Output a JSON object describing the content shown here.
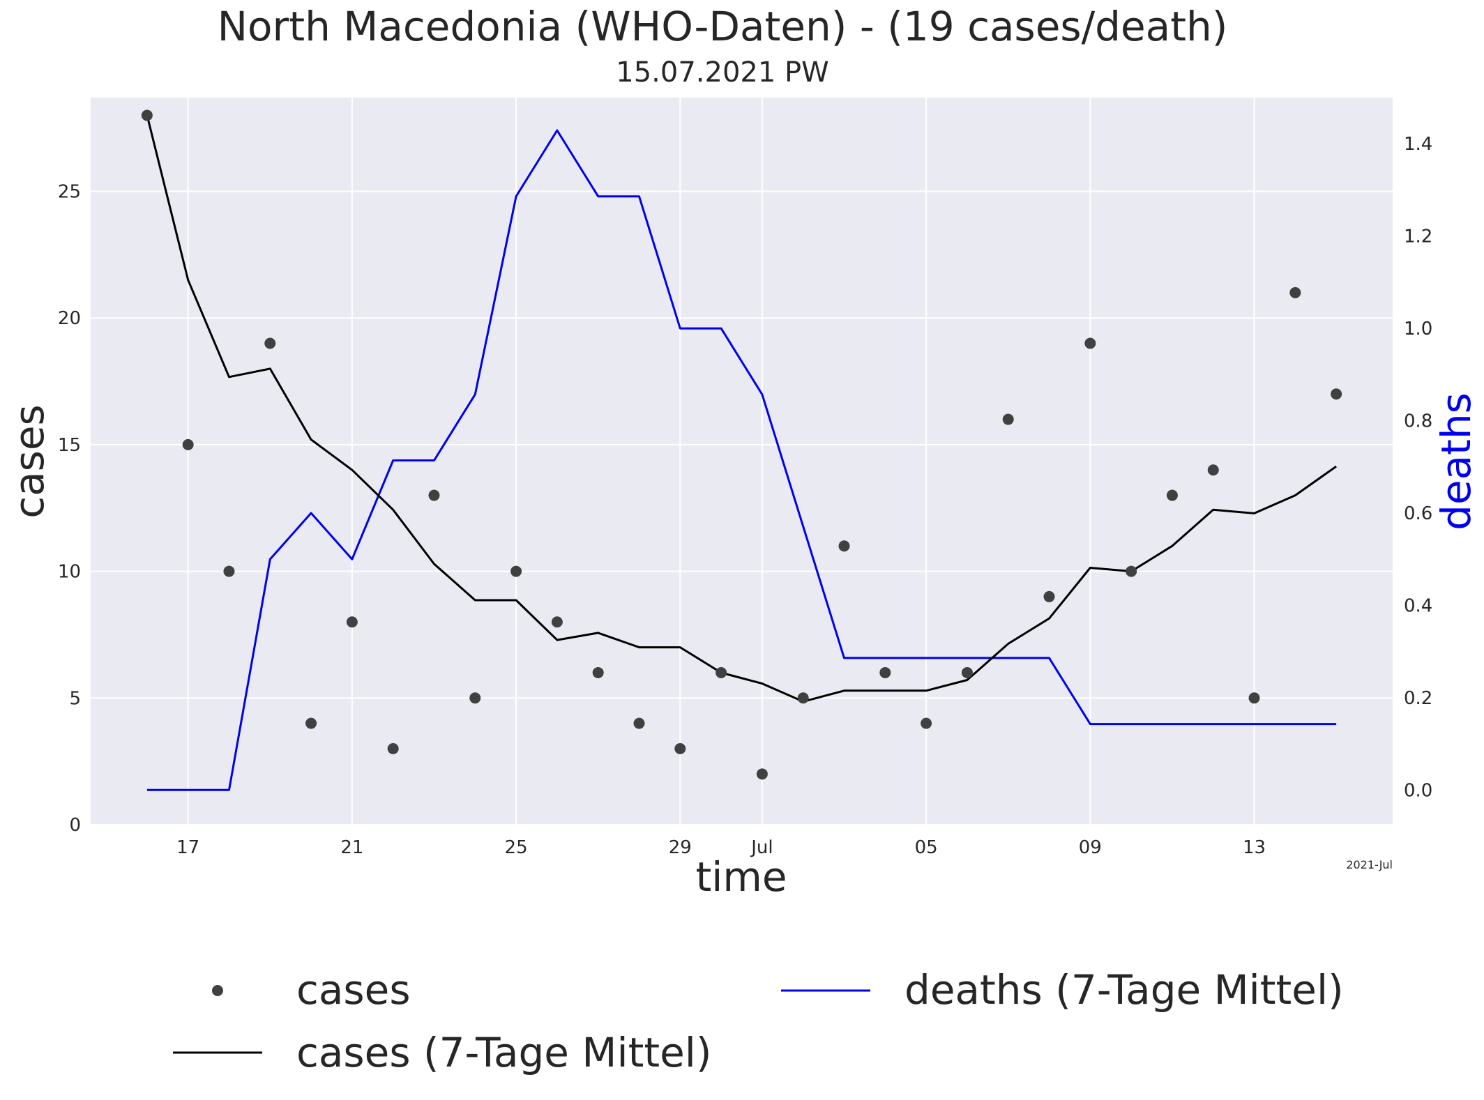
{
  "chart_data": {
    "type": "line",
    "title": "North Macedonia (WHO-Daten) - (19 cases/death)",
    "subtitle": "15.07.2021 PW",
    "xlabel": "time",
    "ylabel_left": "cases",
    "ylabel_right": "deaths",
    "x_offset_label": "2021-Jul",
    "x_dates": [
      "2021-06-16",
      "2021-06-17",
      "2021-06-18",
      "2021-06-19",
      "2021-06-20",
      "2021-06-21",
      "2021-06-22",
      "2021-06-23",
      "2021-06-24",
      "2021-06-25",
      "2021-06-26",
      "2021-06-27",
      "2021-06-28",
      "2021-06-29",
      "2021-06-30",
      "2021-07-01",
      "2021-07-02",
      "2021-07-03",
      "2021-07-04",
      "2021-07-05",
      "2021-07-06",
      "2021-07-07",
      "2021-07-08",
      "2021-07-09",
      "2021-07-10",
      "2021-07-11",
      "2021-07-12",
      "2021-07-13",
      "2021-07-14",
      "2021-07-15"
    ],
    "x_range": [
      "2021-06-14 15:00",
      "2021-07-16 09:00"
    ],
    "x_ticks": [
      {
        "date": "2021-06-17",
        "label": "17"
      },
      {
        "date": "2021-06-21",
        "label": "21"
      },
      {
        "date": "2021-06-25",
        "label": "25"
      },
      {
        "date": "2021-06-29",
        "label": "29"
      },
      {
        "date": "2021-07-01",
        "label": "Jul"
      },
      {
        "date": "2021-07-05",
        "label": "05"
      },
      {
        "date": "2021-07-09",
        "label": "09"
      },
      {
        "date": "2021-07-13",
        "label": "13"
      }
    ],
    "ylim_left": [
      0,
      28.7
    ],
    "yticks_left": [
      "0",
      "5",
      "10",
      "15",
      "20",
      "25"
    ],
    "ylim_right": [
      -0.075,
      1.5
    ],
    "yticks_right": [
      "0.0",
      "0.2",
      "0.4",
      "0.6",
      "0.8",
      "1.0",
      "1.2",
      "1.4"
    ],
    "grid": true,
    "legend_placement": "below",
    "series": [
      {
        "name": "cases",
        "kind": "scatter",
        "axis": "left",
        "color": "#404040",
        "values": [
          28,
          15,
          10,
          19,
          4,
          8,
          3,
          13,
          5,
          10,
          8,
          6,
          4,
          3,
          6,
          2,
          5,
          11,
          6,
          4,
          6,
          16,
          9,
          19,
          10,
          13,
          14,
          5,
          21,
          17
        ]
      },
      {
        "name": "cases (7-Tage Mittel)",
        "kind": "line",
        "axis": "left",
        "color": "#000000",
        "values": [
          28,
          21.5,
          17.67,
          18,
          15.2,
          14,
          12.43,
          10.29,
          8.86,
          8.86,
          7.29,
          7.57,
          7,
          7,
          6,
          5.57,
          4.86,
          5.29,
          5.29,
          5.29,
          5.71,
          7.14,
          8.14,
          10.14,
          10,
          11,
          12.43,
          12.29,
          13,
          14.14
        ]
      },
      {
        "name": "deaths (7-Tage Mittel)",
        "kind": "line",
        "axis": "right",
        "color": "#0000ee",
        "values": [
          0,
          0,
          0,
          0.5,
          0.6,
          0.5,
          0.714,
          0.714,
          0.857,
          1.286,
          1.429,
          1.286,
          1.286,
          1,
          1,
          0.857,
          0.571,
          0.286,
          0.286,
          0.286,
          0.286,
          0.286,
          0.286,
          0.143,
          0.143,
          0.143,
          0.143,
          0.143,
          0.143,
          0.143
        ]
      }
    ],
    "colors": {
      "plot_bg": "#eaeaf2",
      "grid": "#ffffff",
      "deaths_label": "#0000ee"
    }
  }
}
